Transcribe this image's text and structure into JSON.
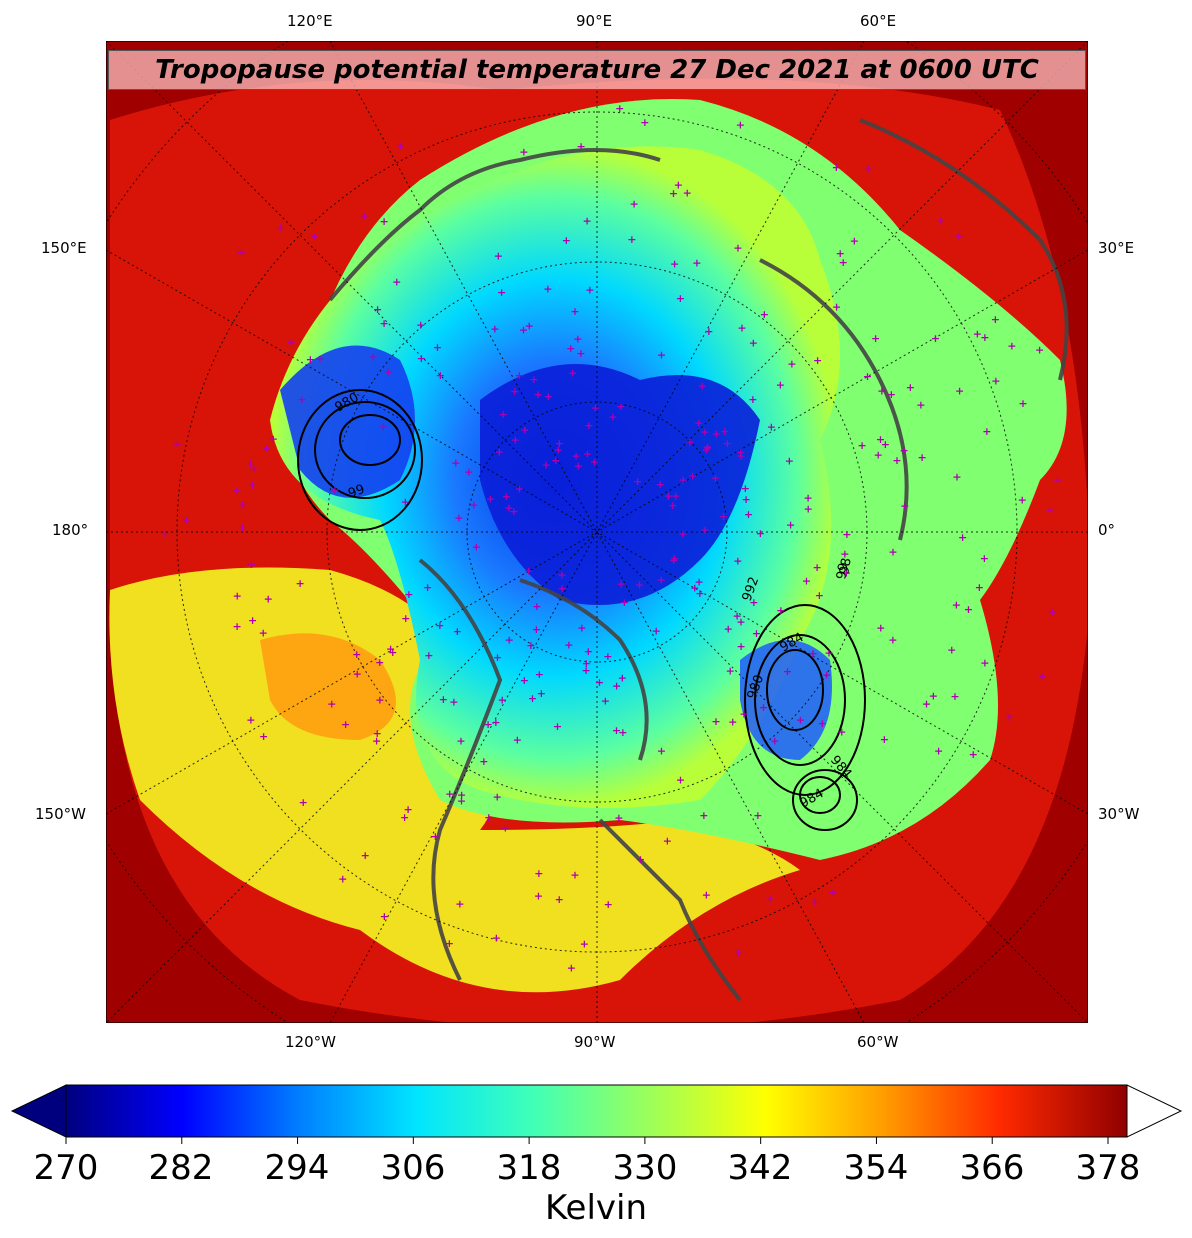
{
  "title": "Tropopause potential temperature 27 Dec 2021 at 0600 UTC",
  "top_lon_labels": [
    "120°E",
    "90°E",
    "60°E"
  ],
  "bottom_lon_labels": [
    "120°W",
    "90°W",
    "60°W"
  ],
  "left_lat_labels": [
    "150°E",
    "180°",
    "150°W"
  ],
  "right_lat_labels": [
    "30°E",
    "0°",
    "30°W"
  ],
  "pressure_contour_labels": [
    "980",
    "99",
    "992",
    "984",
    "980",
    "984",
    "98",
    "984",
    "99"
  ],
  "colorbar": {
    "ticks": [
      "270",
      "282",
      "294",
      "306",
      "318",
      "330",
      "342",
      "354",
      "366",
      "378"
    ],
    "label": "Kelvin",
    "extend": "both",
    "colors": [
      "#00007f",
      "#0000ff",
      "#007fff",
      "#00e5ff",
      "#40ffb7",
      "#9cff5a",
      "#ffff00",
      "#ff9d00",
      "#ff2a00",
      "#900000"
    ]
  }
}
